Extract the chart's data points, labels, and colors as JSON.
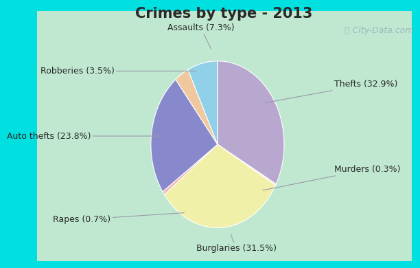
{
  "title": "Crimes by type - 2013",
  "slices": [
    {
      "label": "Thefts (32.9%)",
      "value": 32.9,
      "color": "#b8a8d0"
    },
    {
      "label": "Murders (0.3%)",
      "value": 0.3,
      "color": "#e8e0b8"
    },
    {
      "label": "Burglaries (31.5%)",
      "value": 31.5,
      "color": "#f0f0a8"
    },
    {
      "label": "Rapes (0.7%)",
      "value": 0.7,
      "color": "#f0b8b8"
    },
    {
      "label": "Auto thefts (23.8%)",
      "value": 23.8,
      "color": "#8888cc"
    },
    {
      "label": "Robberies (3.5%)",
      "value": 3.5,
      "color": "#f0c8a0"
    },
    {
      "label": "Assaults (7.3%)",
      "value": 7.3,
      "color": "#90d0e8"
    }
  ],
  "background_outer": "#00e0e0",
  "background_inner_color": "#c0e8d0",
  "title_fontsize": 15,
  "title_color": "#282828",
  "label_fontsize": 9,
  "watermark": "ⓘ City-Data.com",
  "startangle": 90,
  "border_thickness": 0.045
}
